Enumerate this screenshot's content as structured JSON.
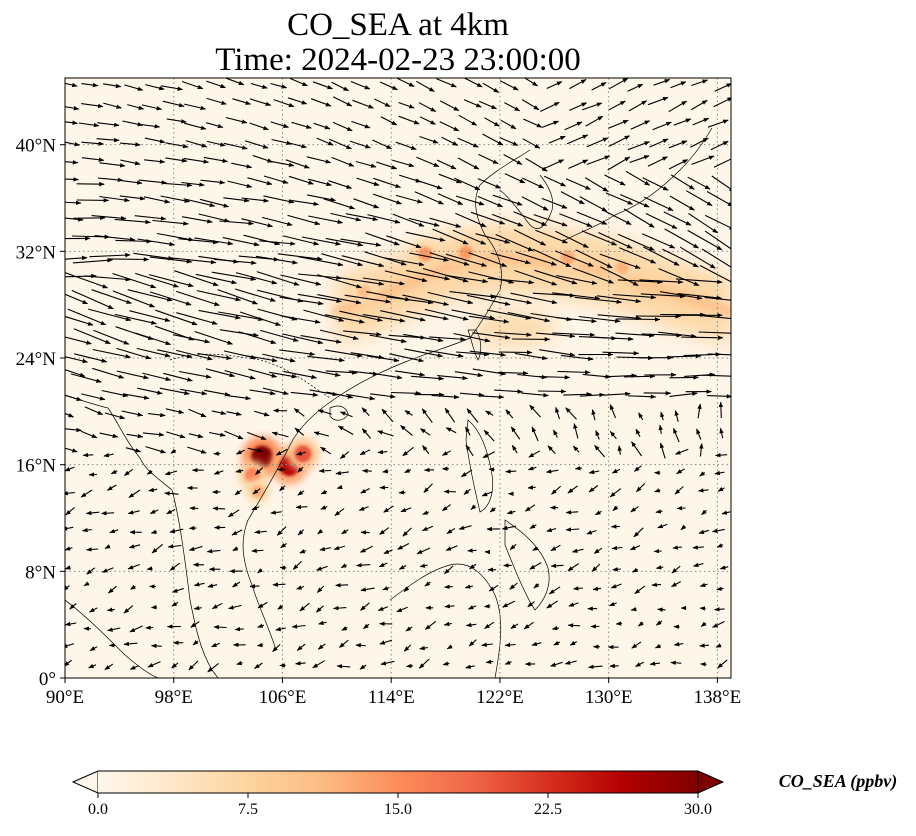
{
  "chart_data": {
    "type": "heatmap",
    "title": "CO_SEA at 4km",
    "subtitle": "Time: 2024-02-23 23:00:00",
    "variable": "CO_SEA",
    "units": "ppbv",
    "colorbar_label": "CO_SEA (ppbv)",
    "colormap": "OrRd",
    "colormap_stops": [
      "#fff7ec",
      "#fee8c8",
      "#fdd49e",
      "#fdbb84",
      "#fc8d59",
      "#ef6548",
      "#d7301f",
      "#b30000",
      "#7f0000"
    ],
    "colorbar_range": [
      0,
      30
    ],
    "colorbar_ticks": [
      "0.0",
      "7.5",
      "15.0",
      "22.5",
      "30.0"
    ],
    "colorbar_extend": "both",
    "xlim": [
      90,
      139
    ],
    "ylim": [
      0,
      45
    ],
    "x_ticks": [
      90,
      98,
      106,
      114,
      122,
      130,
      138
    ],
    "x_tick_labels": [
      "90°E",
      "98°E",
      "106°E",
      "114°E",
      "122°E",
      "130°E",
      "138°E"
    ],
    "y_ticks": [
      0,
      8,
      16,
      24,
      32,
      40
    ],
    "y_tick_labels": [
      "0°",
      "8°N",
      "16°N",
      "24°N",
      "32°N",
      "40°N"
    ],
    "grid": true,
    "plume_band": {
      "description": "westerly CO band along the jet",
      "lon": [
        110,
        114,
        118,
        122,
        126,
        130,
        134,
        139
      ],
      "lat": [
        27.5,
        29.0,
        30.8,
        31.5,
        31.2,
        30.5,
        29.0,
        27.5
      ],
      "peak_ppbv": 13
    },
    "hotspots": [
      {
        "lon": 104.5,
        "lat": 16.6,
        "value": 30
      },
      {
        "lon": 106.5,
        "lat": 15.9,
        "value": 26
      },
      {
        "lon": 107.5,
        "lat": 16.8,
        "value": 20
      },
      {
        "lon": 103.8,
        "lat": 15.2,
        "value": 16
      },
      {
        "lon": 104.2,
        "lat": 14.0,
        "value": 12
      },
      {
        "lon": 116.5,
        "lat": 31.8,
        "value": 14
      },
      {
        "lon": 119.5,
        "lat": 31.9,
        "value": 14
      },
      {
        "lon": 127.0,
        "lat": 31.5,
        "value": 13
      },
      {
        "lon": 131.0,
        "lat": 30.8,
        "value": 12
      },
      {
        "lon": 112.0,
        "lat": 29.0,
        "value": 11
      }
    ],
    "wind_field": {
      "type": "quiver",
      "regimes": [
        {
          "region": "north of 22°N",
          "direction": "westerly to west-southwesterly",
          "strength": "strong"
        },
        {
          "region": "south of 18°N",
          "direction": "northeasterly to easterly trades",
          "strength": "weak"
        }
      ]
    }
  }
}
